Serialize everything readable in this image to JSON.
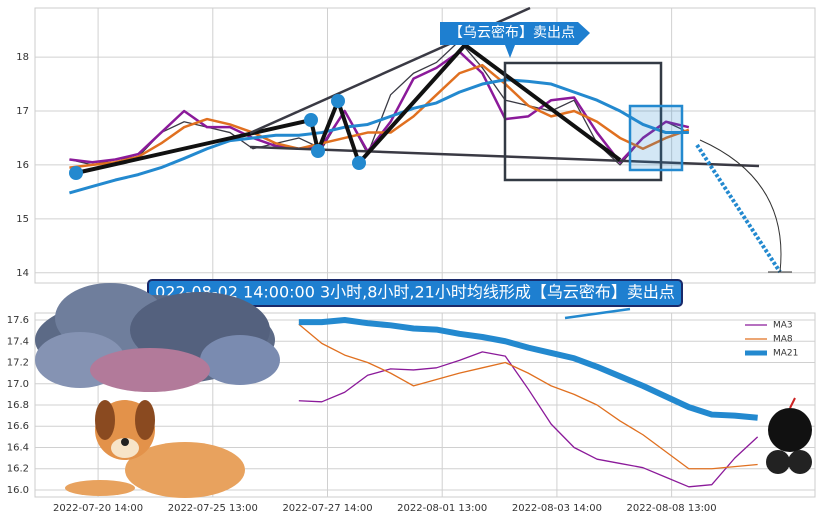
{
  "chart_data": [
    {
      "type": "line",
      "annotation": "【乌云密布】卖出点",
      "xlim": [
        0,
        34
      ],
      "xticks": [
        2.75,
        7.75,
        12.75,
        17.75,
        22.75,
        27.75
      ],
      "ylim": [
        13.81,
        18.91
      ],
      "yticks": [
        14,
        15,
        16,
        17,
        18
      ],
      "grid": true,
      "x": [
        1.5,
        2.5,
        3.5,
        4.5,
        5.5,
        6.5,
        7.5,
        8.5,
        9.5,
        10.5,
        11.5,
        12.5,
        13.5,
        14.5,
        15.5,
        16.5,
        17.5,
        18.5,
        19.5,
        20.5,
        21.5,
        22.5,
        23.5,
        24.5,
        25.5,
        26.5,
        27.5,
        28.5
      ],
      "series": [
        {
          "color": "#3a3a44",
          "line_width": 1.3,
          "values": [
            16.1,
            16.0,
            16.1,
            16.15,
            16.6,
            16.8,
            16.7,
            16.6,
            16.3,
            16.4,
            16.5,
            16.3,
            17.0,
            16.2,
            17.3,
            17.7,
            17.9,
            18.3,
            17.8,
            17.2,
            17.1,
            17.0,
            17.2,
            16.4,
            16.0,
            16.5,
            16.8,
            16.6
          ]
        },
        {
          "color": "#8b1a9a",
          "line_width": 2.5,
          "values": [
            16.1,
            16.05,
            16.1,
            16.2,
            16.6,
            17.0,
            16.7,
            16.7,
            16.5,
            16.35,
            16.3,
            16.35,
            17.0,
            16.25,
            16.8,
            17.6,
            17.8,
            18.1,
            17.7,
            16.85,
            16.9,
            17.2,
            17.25,
            16.6,
            16.05,
            16.5,
            16.8,
            16.7
          ]
        },
        {
          "color": "#e07020",
          "line_width": 2.5,
          "values": [
            15.95,
            16.0,
            16.05,
            16.15,
            16.4,
            16.7,
            16.85,
            16.75,
            16.6,
            16.4,
            16.3,
            16.4,
            16.5,
            16.6,
            16.6,
            16.9,
            17.3,
            17.7,
            17.85,
            17.5,
            17.1,
            16.9,
            17.0,
            16.8,
            16.5,
            16.3,
            16.5,
            16.65
          ]
        },
        {
          "color": "#2389cf",
          "line_width": 3,
          "values": [
            15.48,
            15.6,
            15.72,
            15.82,
            15.95,
            16.12,
            16.3,
            16.45,
            16.5,
            16.55,
            16.55,
            16.6,
            16.7,
            16.75,
            16.9,
            17.05,
            17.15,
            17.35,
            17.5,
            17.58,
            17.55,
            17.5,
            17.35,
            17.2,
            17.0,
            16.75,
            16.6,
            16.6
          ]
        }
      ]
    },
    {
      "type": "line",
      "annotation": "022-08-02 14:00:00 3小时,8小时,21小时均线形成【乌云密布】卖出点",
      "xlim": [
        0,
        34
      ],
      "xticks": [
        {
          "value": 2.75,
          "label": "2022-07-20 14:00"
        },
        {
          "value": 7.75,
          "label": "2022-07-25 13:00"
        },
        {
          "value": 12.75,
          "label": "2022-07-27 14:00"
        },
        {
          "value": 17.75,
          "label": "2022-08-01 13:00"
        },
        {
          "value": 22.75,
          "label": "2022-08-03 14:00"
        },
        {
          "value": 27.75,
          "label": "2022-08-08 13:00"
        }
      ],
      "ylim": [
        15.934,
        17.666
      ],
      "yticks": [
        {
          "value": 16,
          "label": "16.0"
        },
        {
          "value": 16.2,
          "label": "16.2"
        },
        {
          "value": 16.4,
          "label": "16.4"
        },
        {
          "value": 16.6,
          "label": "16.6"
        },
        {
          "value": 16.8,
          "label": "16.8"
        },
        {
          "value": 17,
          "label": "17.0"
        },
        {
          "value": 17.2,
          "label": "17.2"
        },
        {
          "value": 17.4,
          "label": "17.4"
        },
        {
          "value": 17.6,
          "label": "17.6"
        }
      ],
      "grid": true,
      "legend": "upper right",
      "x": [
        11.5,
        12.5,
        13.5,
        14.5,
        15.5,
        16.5,
        17.5,
        18.5,
        19.5,
        20.5,
        21.5,
        22.5,
        23.5,
        24.5,
        25.5,
        26.5,
        27.5,
        28.5,
        29.5,
        30.5,
        31.5
      ],
      "series": [
        {
          "name": "MA3",
          "color": "#8b1a9a",
          "line_width": 1.3,
          "values": [
            16.84,
            16.83,
            16.92,
            17.08,
            17.14,
            17.13,
            17.15,
            17.22,
            17.3,
            17.26,
            16.95,
            16.62,
            16.4,
            16.29,
            16.25,
            16.21,
            16.12,
            16.03,
            16.05,
            16.3,
            16.5
          ]
        },
        {
          "name": "MA8",
          "color": "#e07020",
          "line_width": 1.3,
          "values": [
            17.56,
            17.38,
            17.27,
            17.2,
            17.1,
            16.98,
            17.04,
            17.1,
            17.15,
            17.2,
            17.1,
            16.98,
            16.9,
            16.8,
            16.65,
            16.52,
            16.36,
            16.2,
            16.2,
            16.22,
            16.24
          ]
        },
        {
          "name": "MA21",
          "color": "#2389cf",
          "line_width": 6,
          "values": [
            17.58,
            17.58,
            17.6,
            17.57,
            17.55,
            17.52,
            17.51,
            17.47,
            17.44,
            17.4,
            17.34,
            17.29,
            17.24,
            17.16,
            17.07,
            16.98,
            16.88,
            16.78,
            16.71,
            16.7,
            16.68
          ]
        }
      ]
    }
  ]
}
